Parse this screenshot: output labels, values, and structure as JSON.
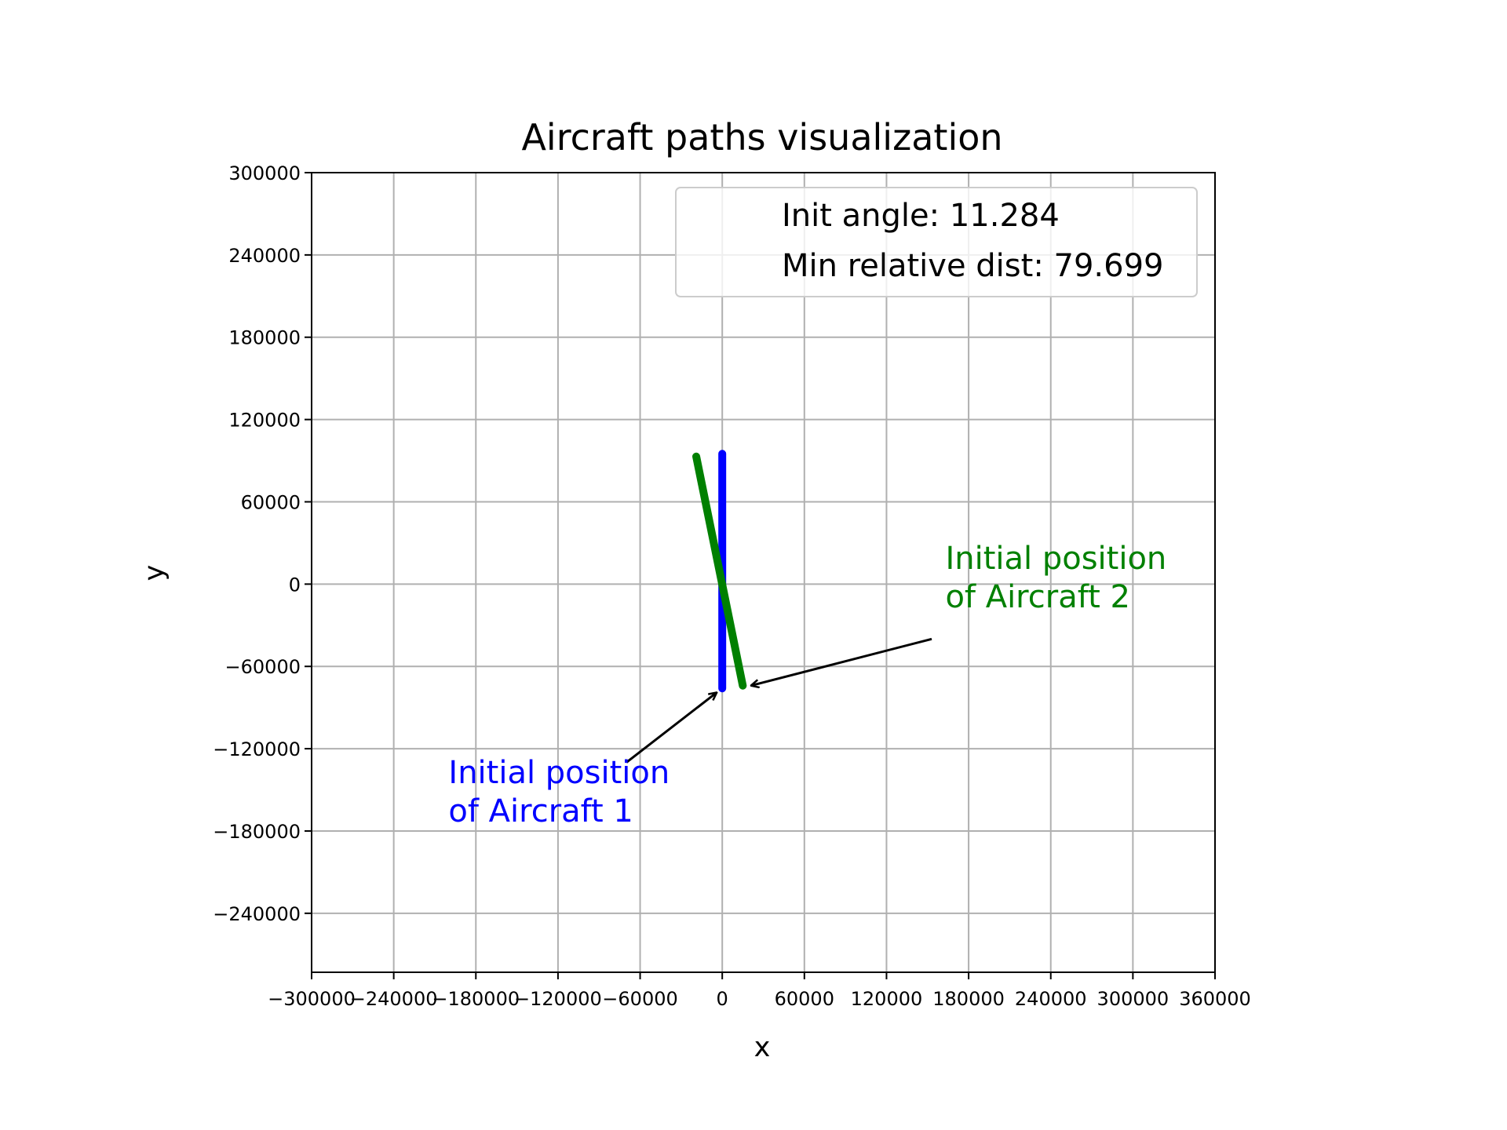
{
  "chart_data": {
    "type": "line",
    "title": "Aircraft paths visualization",
    "xlabel": "x",
    "ylabel": "y",
    "xlim": [
      -300000,
      360000
    ],
    "ylim": [
      -283000,
      300000
    ],
    "xticks": [
      -300000,
      -240000,
      -180000,
      -120000,
      -60000,
      0,
      60000,
      120000,
      180000,
      240000,
      300000,
      360000
    ],
    "xtick_labels": [
      "−300000",
      "−240000",
      "−180000",
      "−120000",
      "−60000",
      "0",
      "60000",
      "120000",
      "180000",
      "240000",
      "300000",
      "360000"
    ],
    "yticks": [
      300000,
      240000,
      180000,
      120000,
      60000,
      0,
      -60000,
      -120000,
      -180000,
      -240000
    ],
    "ytick_labels": [
      "300000",
      "240000",
      "180000",
      "120000",
      "60000",
      "0",
      "−60000",
      "−120000",
      "−180000",
      "−240000"
    ],
    "grid": true,
    "series": [
      {
        "color": "#0000ff",
        "x": [
          0,
          0
        ],
        "y": [
          -76000,
          95000
        ]
      },
      {
        "color": "#008000",
        "x": [
          15000,
          -19000
        ],
        "y": [
          -74000,
          93000
        ]
      }
    ],
    "legend": {
      "placement": "top-right",
      "entries": [
        "Init angle: 11.284",
        "Min relative dist: 79.699"
      ]
    },
    "annotations": [
      {
        "lines": [
          "Initial position",
          "of Aircraft 1"
        ],
        "color": "#0000ff",
        "text_xy": [
          -200000,
          -145000
        ],
        "arrow_from": [
          -70000,
          -130000
        ],
        "arrow_to": [
          -4000,
          -79000
        ]
      },
      {
        "lines": [
          "Initial position",
          "of Aircraft 2"
        ],
        "color": "#008000",
        "text_xy": [
          163000,
          11000
        ],
        "arrow_from": [
          153000,
          -40000
        ],
        "arrow_to": [
          21000,
          -74000
        ]
      }
    ]
  }
}
